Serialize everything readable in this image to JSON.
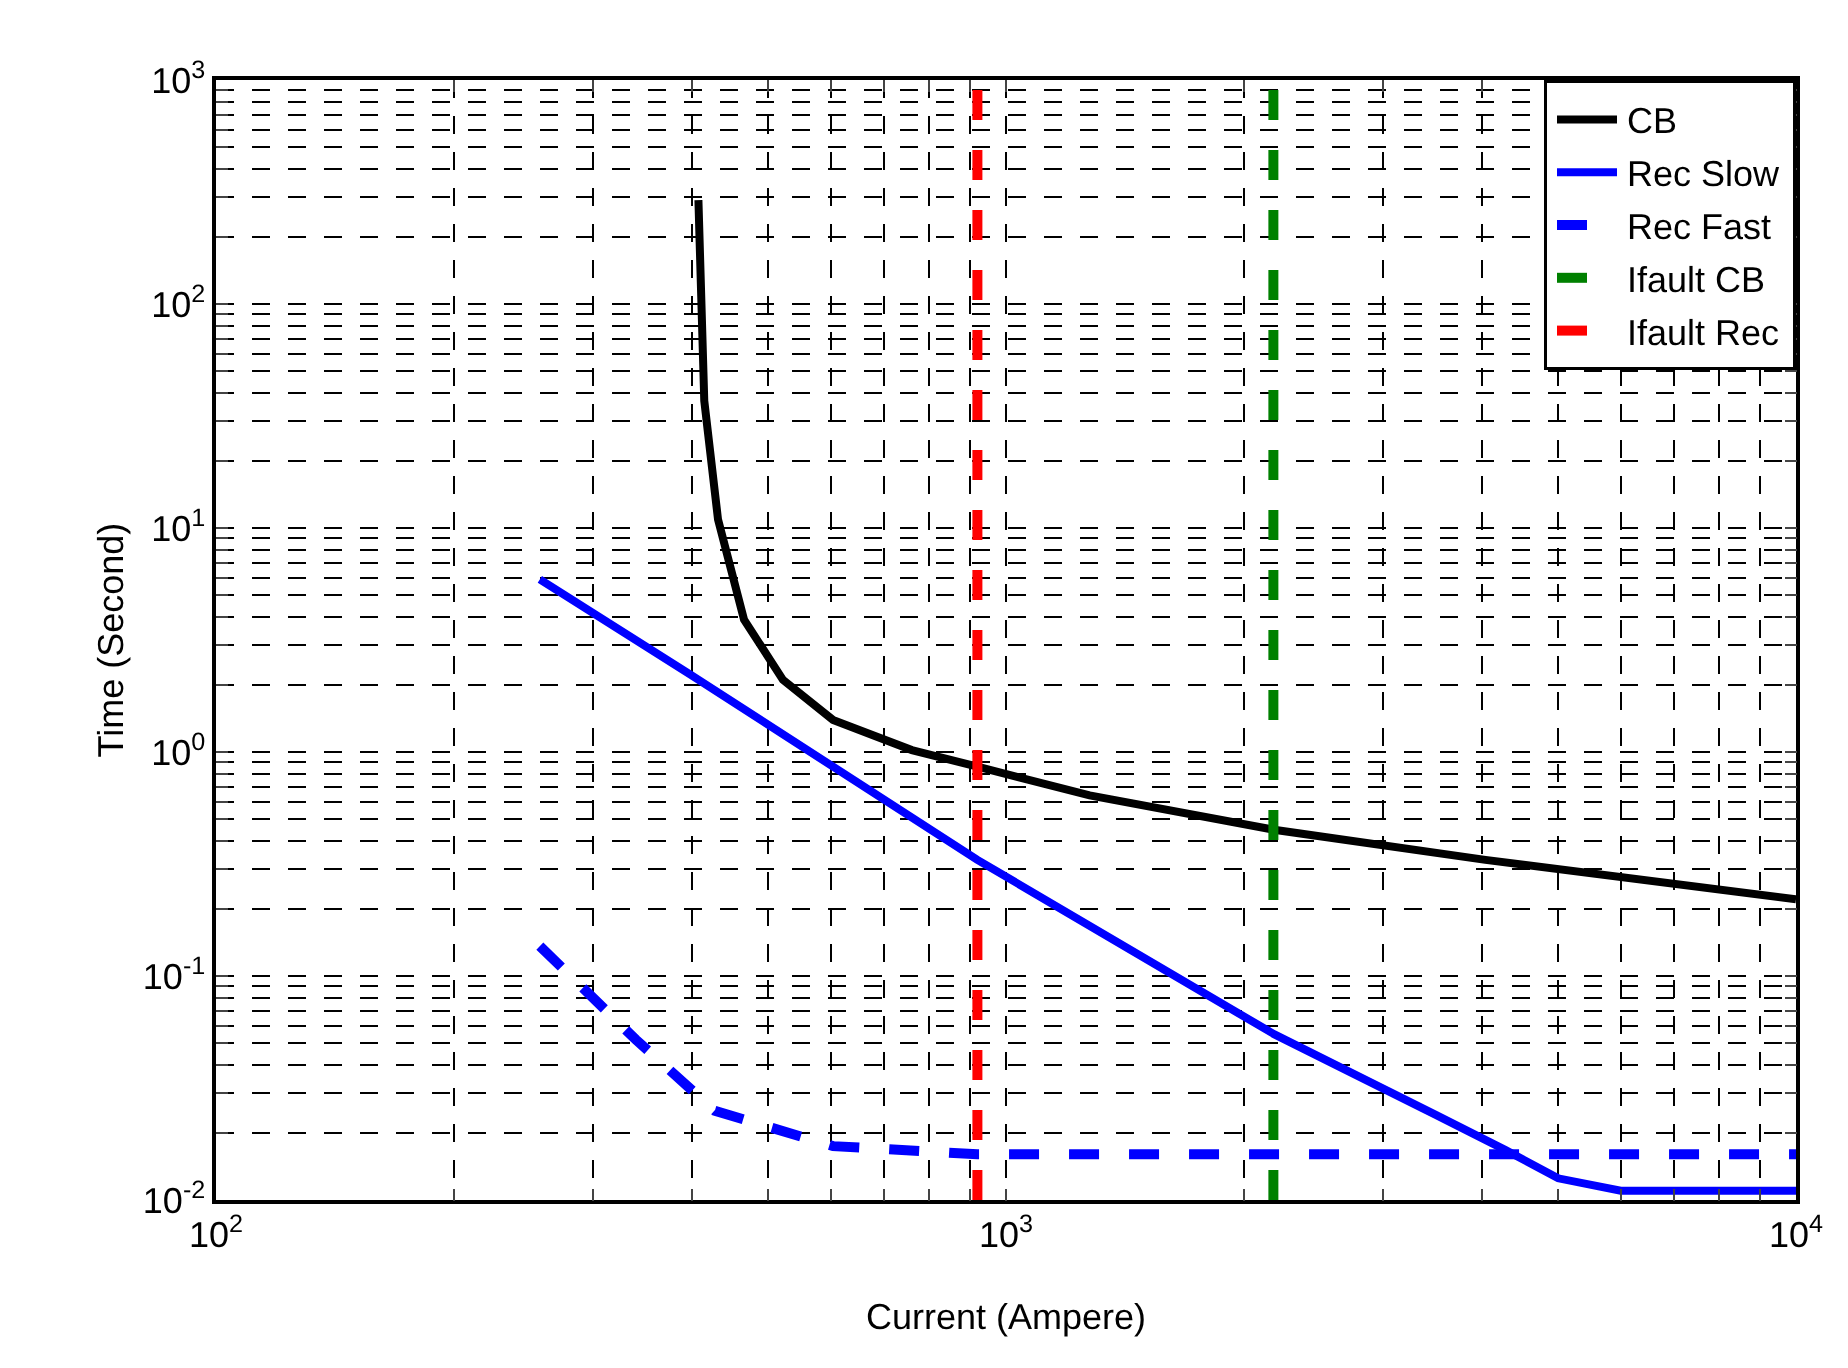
{
  "chart_data": {
    "type": "line",
    "xlabel": "Current (Ampere)",
    "ylabel": "Time (Second)",
    "log": "xy",
    "grid": true,
    "legend": "top right",
    "xlim": [
      100,
      10000
    ],
    "ylim": [
      0.01,
      1000
    ],
    "xticks": [
      {
        "value": 100,
        "label": "10$^{2}$"
      },
      {
        "value": 200,
        "label": null
      },
      {
        "value": 300,
        "label": null
      },
      {
        "value": 400,
        "label": null
      },
      {
        "value": 500,
        "label": null
      },
      {
        "value": 600,
        "label": null
      },
      {
        "value": 700,
        "label": null
      },
      {
        "value": 800,
        "label": null
      },
      {
        "value": 900,
        "label": null
      },
      {
        "value": 1000,
        "label": "10$^{3}$"
      },
      {
        "value": 2000,
        "label": null
      },
      {
        "value": 3000,
        "label": null
      },
      {
        "value": 4000,
        "label": null
      },
      {
        "value": 5000,
        "label": null
      },
      {
        "value": 6000,
        "label": null
      },
      {
        "value": 7000,
        "label": null
      },
      {
        "value": 8000,
        "label": null
      },
      {
        "value": 9000,
        "label": null
      },
      {
        "value": 10000,
        "label": "10$^{4}$"
      }
    ],
    "yticks": [
      {
        "value": 0.01,
        "label": "10$^{-2}$"
      },
      {
        "value": 0.02,
        "label": null
      },
      {
        "value": 0.03,
        "label": null
      },
      {
        "value": 0.04,
        "label": null
      },
      {
        "value": 0.05,
        "label": null
      },
      {
        "value": 0.06,
        "label": null
      },
      {
        "value": 0.07,
        "label": null
      },
      {
        "value": 0.08,
        "label": null
      },
      {
        "value": 0.09,
        "label": null
      },
      {
        "value": 0.1,
        "label": "10$^{-1}$"
      },
      {
        "value": 0.2,
        "label": null
      },
      {
        "value": 0.3,
        "label": null
      },
      {
        "value": 0.4,
        "label": null
      },
      {
        "value": 0.5,
        "label": null
      },
      {
        "value": 0.6,
        "label": null
      },
      {
        "value": 0.7,
        "label": null
      },
      {
        "value": 0.8,
        "label": null
      },
      {
        "value": 0.9,
        "label": null
      },
      {
        "value": 1,
        "label": "10$^{0}$"
      },
      {
        "value": 2,
        "label": null
      },
      {
        "value": 3,
        "label": null
      },
      {
        "value": 4,
        "label": null
      },
      {
        "value": 5,
        "label": null
      },
      {
        "value": 6,
        "label": null
      },
      {
        "value": 7,
        "label": null
      },
      {
        "value": 8,
        "label": null
      },
      {
        "value": 9,
        "label": null
      },
      {
        "value": 10,
        "label": "10$^{1}$"
      },
      {
        "value": 20,
        "label": null
      },
      {
        "value": 30,
        "label": null
      },
      {
        "value": 40,
        "label": null
      },
      {
        "value": 50,
        "label": null
      },
      {
        "value": 60,
        "label": null
      },
      {
        "value": 70,
        "label": null
      },
      {
        "value": 80,
        "label": null
      },
      {
        "value": 90,
        "label": null
      },
      {
        "value": 100,
        "label": "10$^{2}$"
      },
      {
        "value": 200,
        "label": null
      },
      {
        "value": 300,
        "label": null
      },
      {
        "value": 400,
        "label": null
      },
      {
        "value": 500,
        "label": null
      },
      {
        "value": 600,
        "label": null
      },
      {
        "value": 700,
        "label": null
      },
      {
        "value": 800,
        "label": null
      },
      {
        "value": 900,
        "label": null
      },
      {
        "value": 1000,
        "label": "10$^{3}$"
      }
    ],
    "series": [
      {
        "name": "CB",
        "color": "#000000",
        "line_style": "solid",
        "x": [
          408,
          415,
          432,
          466,
          522,
          604,
          760,
          920,
          1276,
          2184,
          4045,
          10000
        ],
        "values": [
          291,
          37,
          10.9,
          3.9,
          2.1,
          1.39,
          1.02,
          0.86,
          0.64,
          0.45,
          0.33,
          0.22
        ]
      },
      {
        "name": "Rec Slow",
        "color": "#0000ff",
        "line_style": "solid",
        "x": [
          257,
          400,
          920,
          2184,
          3500,
          4290,
          5000,
          6000,
          10000
        ],
        "values": [
          5.9,
          2.2,
          0.33,
          0.055,
          0.024,
          0.0167,
          0.0125,
          0.011,
          0.011
        ]
      },
      {
        "name": "Rec Fast",
        "color": "#0000ff",
        "line_style": "dashed",
        "x": [
          257,
          340,
          428,
          604,
          920,
          10000
        ],
        "values": [
          0.136,
          0.052,
          0.025,
          0.0174,
          0.016,
          0.016
        ]
      },
      {
        "name": "Ifault CB",
        "color": "#008000",
        "line_style": "dashed",
        "x": [
          2180,
          2180
        ],
        "values": [
          0.01,
          1000
        ]
      },
      {
        "name": "Ifault Rec",
        "color": "#ff0000",
        "line_style": "dashed",
        "x": [
          920,
          920
        ],
        "values": [
          0.01,
          1000
        ]
      }
    ]
  }
}
